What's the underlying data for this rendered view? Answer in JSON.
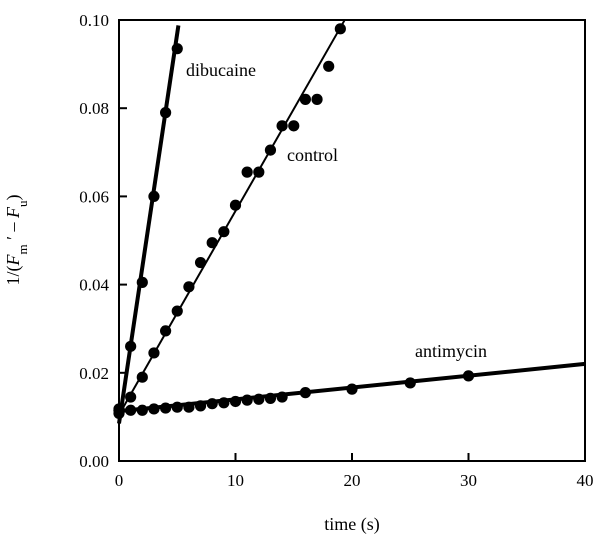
{
  "chart_data": {
    "type": "scatter",
    "title": "",
    "xlabel": "time (s)",
    "ylabel_parts": {
      "prefix": "1/(",
      "F": "F",
      "m": "m",
      "prime": " ′ – ",
      "F2": "F",
      "u": "u",
      "suffix": ")"
    },
    "xlim": [
      0,
      40
    ],
    "ylim": [
      0,
      0.1
    ],
    "xticks": [
      0,
      10,
      20,
      30,
      40
    ],
    "yticks": [
      0.0,
      0.02,
      0.04,
      0.06,
      0.08,
      0.1
    ],
    "ytick_labels": [
      "0.00",
      "0.02",
      "0.04",
      "0.06",
      "0.08",
      "0.10"
    ],
    "xtick_labels": [
      "0",
      "10",
      "20",
      "30",
      "40"
    ],
    "grid": false,
    "series": [
      {
        "name": "dibucaine",
        "fit": {
          "intercept": 0.0085,
          "slope": 0.0177,
          "x_end": 5.1
        },
        "points": [
          [
            0,
            0.0115
          ],
          [
            1,
            0.026
          ],
          [
            2,
            0.0405
          ],
          [
            3,
            0.06
          ],
          [
            4,
            0.079
          ],
          [
            5,
            0.0935
          ]
        ]
      },
      {
        "name": "control",
        "fit": {
          "intercept": 0.0105,
          "slope": 0.00462,
          "x_end": 19.4
        },
        "points": [
          [
            0,
            0.0115
          ],
          [
            1,
            0.0145
          ],
          [
            2,
            0.019
          ],
          [
            3,
            0.0245
          ],
          [
            4,
            0.0295
          ],
          [
            5,
            0.034
          ],
          [
            6,
            0.0395
          ],
          [
            7,
            0.045
          ],
          [
            8,
            0.0495
          ],
          [
            9,
            0.052
          ],
          [
            10,
            0.058
          ],
          [
            11,
            0.0655
          ],
          [
            12,
            0.0655
          ],
          [
            13,
            0.0705
          ],
          [
            14,
            0.076
          ],
          [
            15,
            0.076
          ],
          [
            16,
            0.082
          ],
          [
            17,
            0.082
          ],
          [
            18,
            0.0895
          ],
          [
            19,
            0.098
          ]
        ]
      },
      {
        "name": "antimycin",
        "fit": {
          "intercept": 0.0113,
          "slope": 0.000268,
          "x_end": 40
        },
        "points": [
          [
            0,
            0.0108
          ],
          [
            0,
            0.0118
          ],
          [
            1,
            0.0115
          ],
          [
            2,
            0.0115
          ],
          [
            3,
            0.0118
          ],
          [
            4,
            0.012
          ],
          [
            5,
            0.0122
          ],
          [
            6,
            0.0122
          ],
          [
            7,
            0.0125
          ],
          [
            8,
            0.013
          ],
          [
            9,
            0.0132
          ],
          [
            10,
            0.0135
          ],
          [
            11,
            0.0138
          ],
          [
            12,
            0.014
          ],
          [
            13,
            0.0142
          ],
          [
            14,
            0.0145
          ],
          [
            16,
            0.0155
          ],
          [
            20,
            0.0163
          ],
          [
            25,
            0.0177
          ],
          [
            30,
            0.0193
          ]
        ]
      }
    ]
  }
}
